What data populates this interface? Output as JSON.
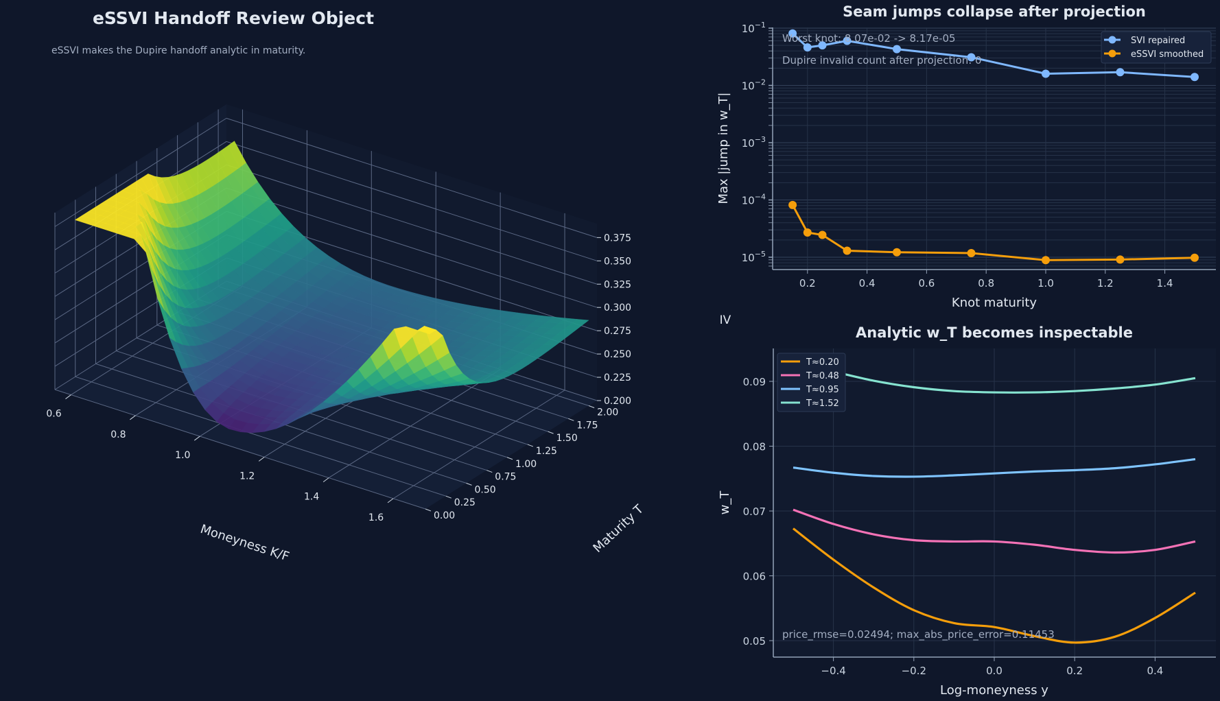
{
  "figure": {
    "background": "#0f172a",
    "panel_background": "#111a2e"
  },
  "chart_data": [
    {
      "type": "surface",
      "title": "eSSVI Handoff Review Object",
      "subtitle": "eSSVI makes the Dupire handoff analytic in maturity.",
      "xlabel": "Moneyness K/F",
      "ylabel": "Maturity T",
      "zlabel": "IV",
      "xticks": [
        "0.6",
        "0.8",
        "1.0",
        "1.2",
        "1.4",
        "1.6"
      ],
      "yticks": [
        "0.00",
        "0.25",
        "0.50",
        "0.75",
        "1.00",
        "1.25",
        "1.50",
        "1.75",
        "2.00"
      ],
      "zticks": [
        "0.200",
        "0.225",
        "0.250",
        "0.275",
        "0.300",
        "0.325",
        "0.350",
        "0.375"
      ],
      "xlim": [
        0.55,
        1.7
      ],
      "ylim": [
        0,
        2.1
      ],
      "zlim": [
        0.2,
        0.39
      ],
      "colormap": "viridis"
    },
    {
      "type": "line",
      "title": "Seam jumps collapse after projection",
      "xlabel": "Knot maturity",
      "ylabel": "Max |jump in w_T|",
      "yscale": "log",
      "xlim": [
        0.09,
        1.54
      ],
      "ylim": [
        6.5e-06,
        0.1
      ],
      "xticks": [
        "0.2",
        "0.4",
        "0.6",
        "0.8",
        "1.0",
        "1.2",
        "1.4"
      ],
      "yticks": [
        "10^-5",
        "10^-4",
        "10^-3",
        "10^-2",
        "10^-1"
      ],
      "grid": true,
      "legend": "top-right",
      "annotations": [
        "Worst knot: 8.07e-02 -> 8.17e-05",
        "Dupire invalid count after projection: 0"
      ],
      "x": [
        0.15,
        0.2,
        0.25,
        0.333,
        0.5,
        0.75,
        1.0,
        1.25,
        1.5
      ],
      "series": [
        {
          "name": "SVI repaired",
          "color": "#7fb8ff",
          "values": [
            0.0807,
            0.046,
            0.05,
            0.06,
            0.043,
            0.031,
            0.016,
            0.017,
            0.014
          ]
        },
        {
          "name": "eSSVI smoothed",
          "color": "#f59e0b",
          "values": [
            8.17e-05,
            2.7e-05,
            2.45e-05,
            1.3e-05,
            1.22e-05,
            1.18e-05,
            8.9e-06,
            9.1e-06,
            9.8e-06
          ]
        }
      ]
    },
    {
      "type": "line",
      "title": "Analytic w_T becomes inspectable",
      "xlabel": "Log-moneyness y",
      "ylabel": "w_T",
      "xlim": [
        -0.55,
        0.55
      ],
      "ylim": [
        0.0475,
        0.095
      ],
      "xticks": [
        "−0.4",
        "−0.2",
        "0.0",
        "0.2",
        "0.4"
      ],
      "yticks": [
        "0.05",
        "0.06",
        "0.07",
        "0.08",
        "0.09"
      ],
      "grid": true,
      "legend": "top-left",
      "annotations": [
        "price_rmse=0.02494; max_abs_price_error=0.11453"
      ],
      "x": [
        -0.5,
        -0.4,
        -0.3,
        -0.2,
        -0.1,
        0.0,
        0.1,
        0.2,
        0.3,
        0.4,
        0.5
      ],
      "series": [
        {
          "name": "T≈0.20",
          "color": "#f59e0b",
          "values": [
            0.0673,
            0.0625,
            0.0582,
            0.0547,
            0.0527,
            0.0521,
            0.0507,
            0.0497,
            0.0506,
            0.0535,
            0.0574
          ]
        },
        {
          "name": "T≈0.48",
          "color": "#f472b6",
          "values": [
            0.0702,
            0.068,
            0.0664,
            0.0655,
            0.0653,
            0.0653,
            0.0648,
            0.064,
            0.0636,
            0.064,
            0.0653
          ]
        },
        {
          "name": "T≈0.95",
          "color": "#7fc4ff",
          "values": [
            0.0767,
            0.0759,
            0.0754,
            0.0753,
            0.0755,
            0.0758,
            0.0761,
            0.0763,
            0.0766,
            0.0772,
            0.078
          ]
        },
        {
          "name": "T≈1.52",
          "color": "#86e3d0",
          "values": [
            0.0928,
            0.0915,
            0.0901,
            0.0891,
            0.0885,
            0.0883,
            0.0883,
            0.0885,
            0.0889,
            0.0895,
            0.0905
          ]
        }
      ]
    }
  ]
}
